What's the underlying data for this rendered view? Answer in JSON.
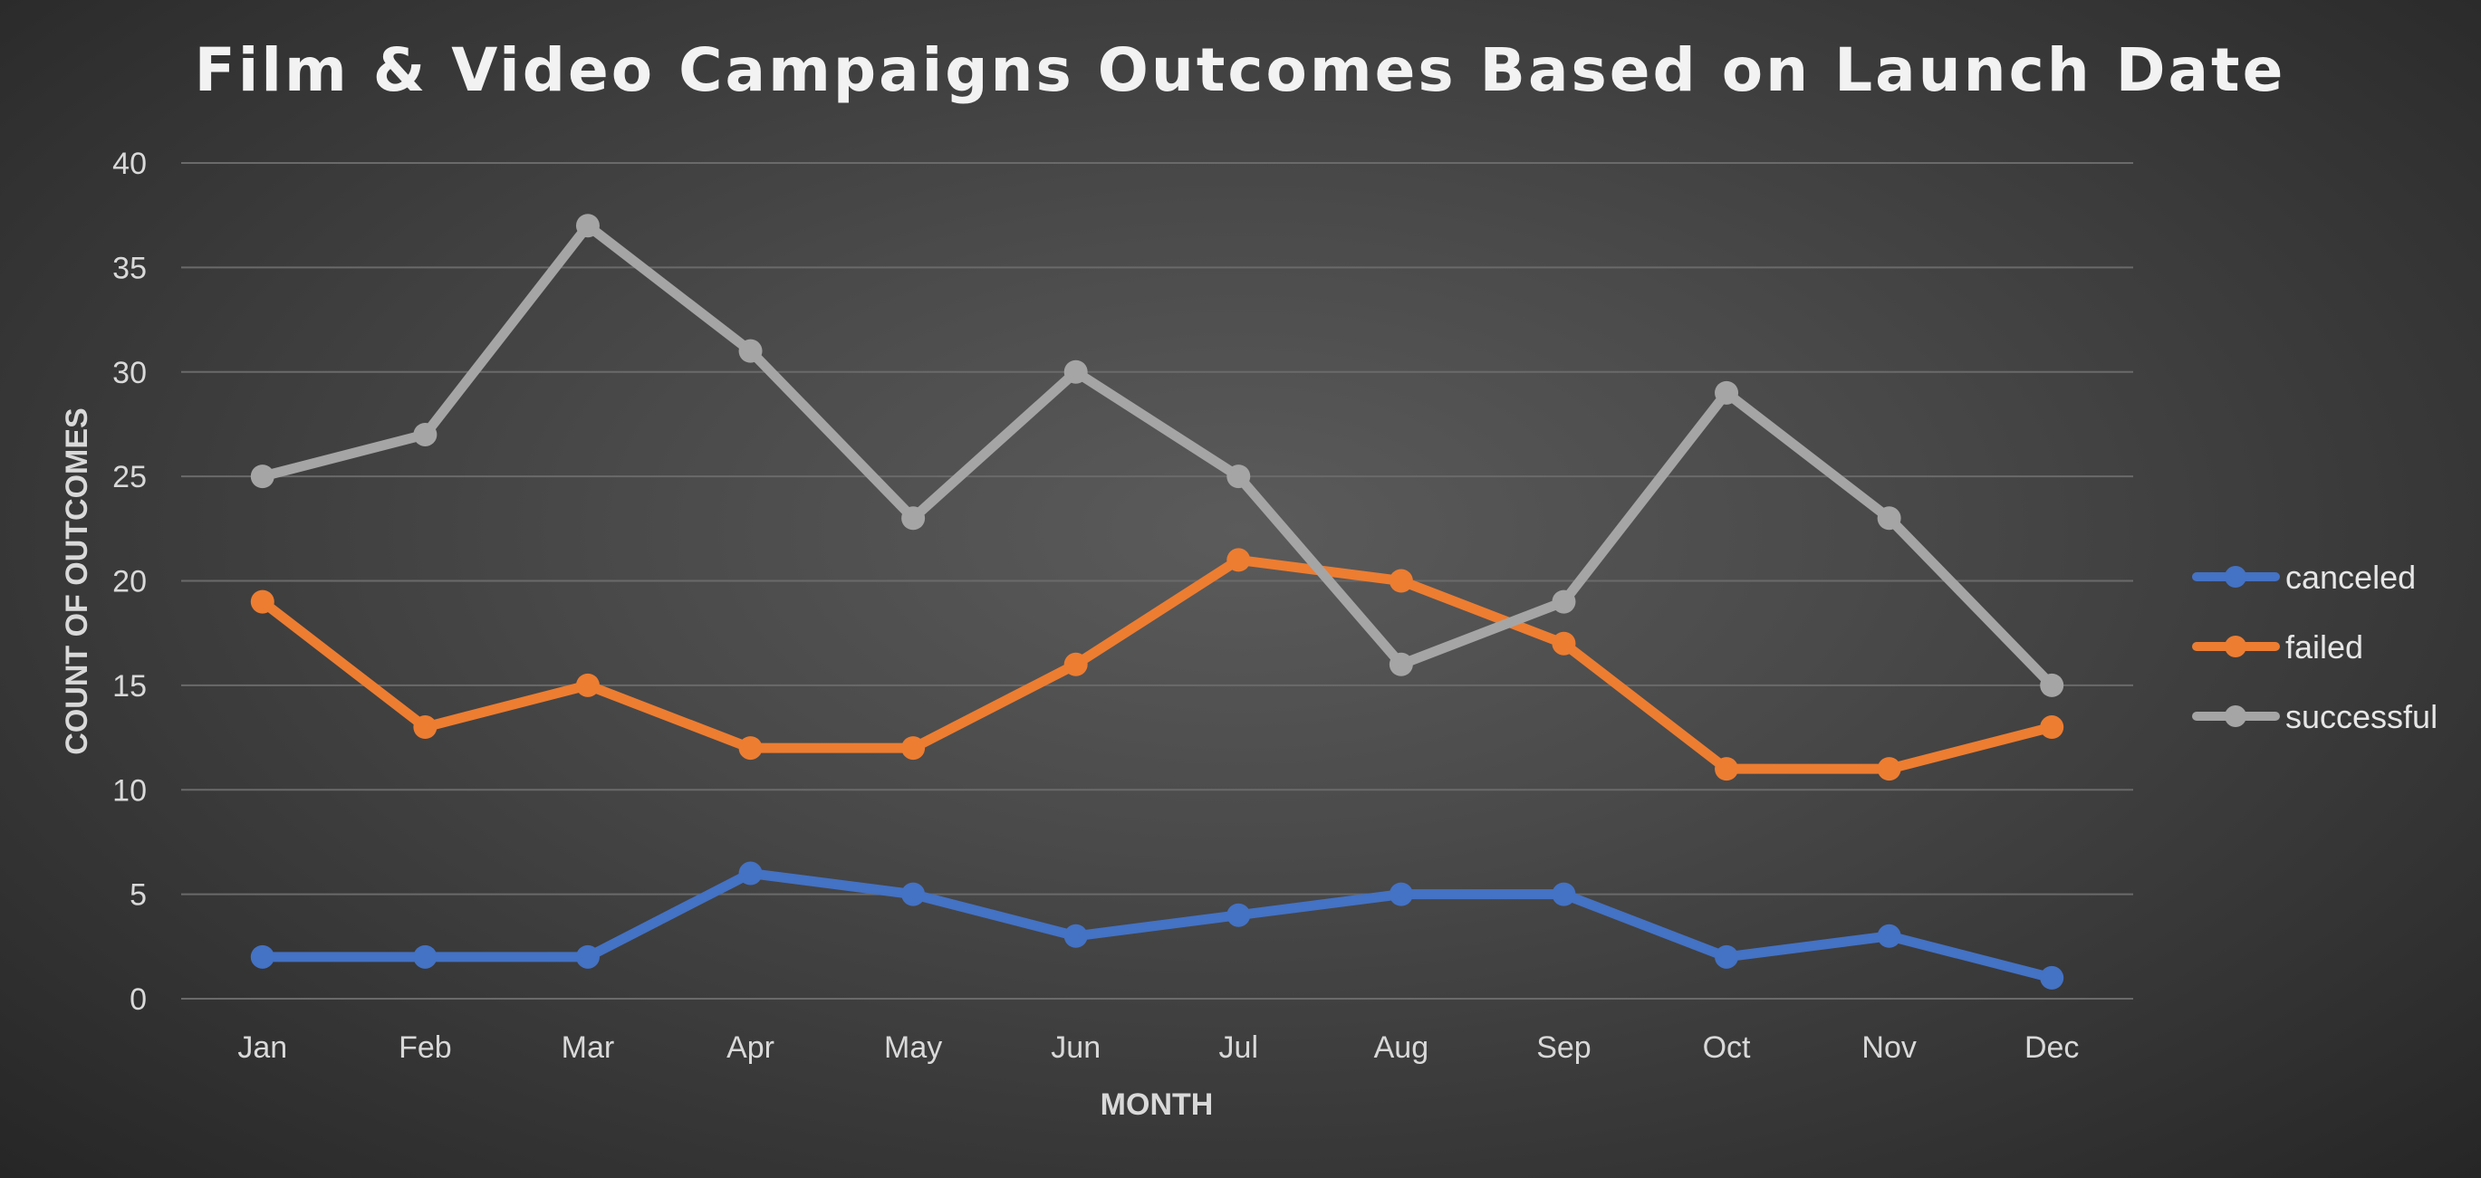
{
  "chart_data": {
    "type": "line",
    "title": "Film & Video Campaigns Outcomes Based on Launch Date",
    "xlabel": "MONTH",
    "ylabel": "COUNT OF OUTCOMES",
    "categories": [
      "Jan",
      "Feb",
      "Mar",
      "Apr",
      "May",
      "Jun",
      "Jul",
      "Aug",
      "Sep",
      "Oct",
      "Nov",
      "Dec"
    ],
    "ylim": [
      0,
      40
    ],
    "yticks": [
      0,
      5,
      10,
      15,
      20,
      25,
      30,
      35,
      40
    ],
    "grid": true,
    "legend_position": "right",
    "series": [
      {
        "name": "canceled",
        "color": "#4472c4",
        "values": [
          2,
          2,
          2,
          6,
          5,
          3,
          4,
          5,
          5,
          2,
          3,
          1
        ]
      },
      {
        "name": "failed",
        "color": "#ed7d31",
        "values": [
          19,
          13,
          15,
          12,
          12,
          16,
          21,
          20,
          17,
          11,
          11,
          13
        ]
      },
      {
        "name": "successful",
        "color": "#a5a5a5",
        "values": [
          25,
          27,
          37,
          31,
          23,
          30,
          25,
          16,
          19,
          29,
          23,
          15
        ]
      }
    ]
  }
}
